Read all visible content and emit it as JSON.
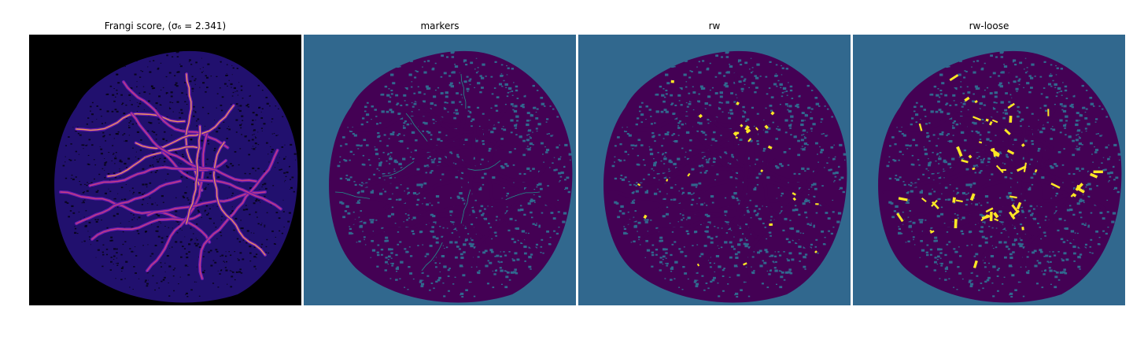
{
  "panels": [
    {
      "title": "Frangi score, (σ₆ = 2.341)",
      "image": "frangi-score-vessel-map"
    },
    {
      "title": "markers",
      "image": "marker-label-map"
    },
    {
      "title": "rw",
      "image": "random-walker-segmentation"
    },
    {
      "title": "rw-loose",
      "image": "random-walker-loose-segmentation"
    }
  ],
  "colors": {
    "frangi_background": "#000000",
    "frangi_low": "#2a0a8c",
    "frangi_high": "#fca050",
    "label_background": "#31688e",
    "label_vessel": "#440154",
    "label_marker": "#21918c",
    "label_highlight": "#fde725"
  }
}
